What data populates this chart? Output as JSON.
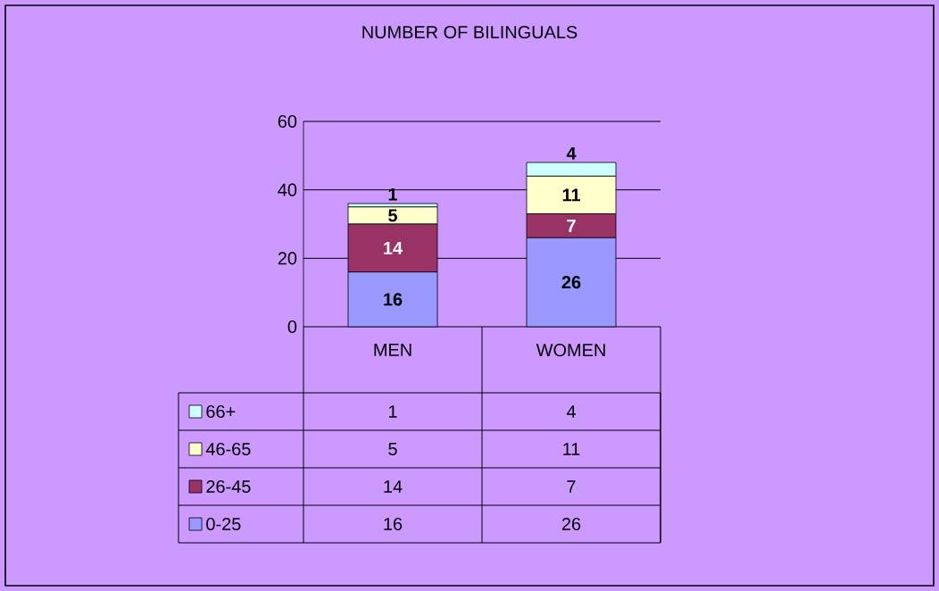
{
  "chart_data": {
    "type": "bar",
    "title": "NUMBER OF BILINGUALS",
    "categories": [
      "MEN",
      "WOMEN"
    ],
    "series": [
      {
        "name": "0-25",
        "color": "#9999ff",
        "values": [
          16,
          26
        ],
        "value_labels": [
          "16",
          "26"
        ]
      },
      {
        "name": "26-45",
        "color": "#993366",
        "values": [
          14,
          7
        ],
        "value_labels": [
          "14",
          "7"
        ]
      },
      {
        "name": "46-65",
        "color": "#ffffcc",
        "values": [
          5,
          11
        ],
        "value_labels": [
          "5",
          "11"
        ]
      },
      {
        "name": "66+",
        "color": "#ccffff",
        "values": [
          1,
          4
        ],
        "value_labels": [
          "1",
          "4"
        ]
      }
    ],
    "stacked": true,
    "ylim": [
      0,
      60
    ],
    "yticks": [
      0,
      20,
      40,
      60
    ],
    "grid": "y",
    "legend": "bottom",
    "data_labels": true
  }
}
